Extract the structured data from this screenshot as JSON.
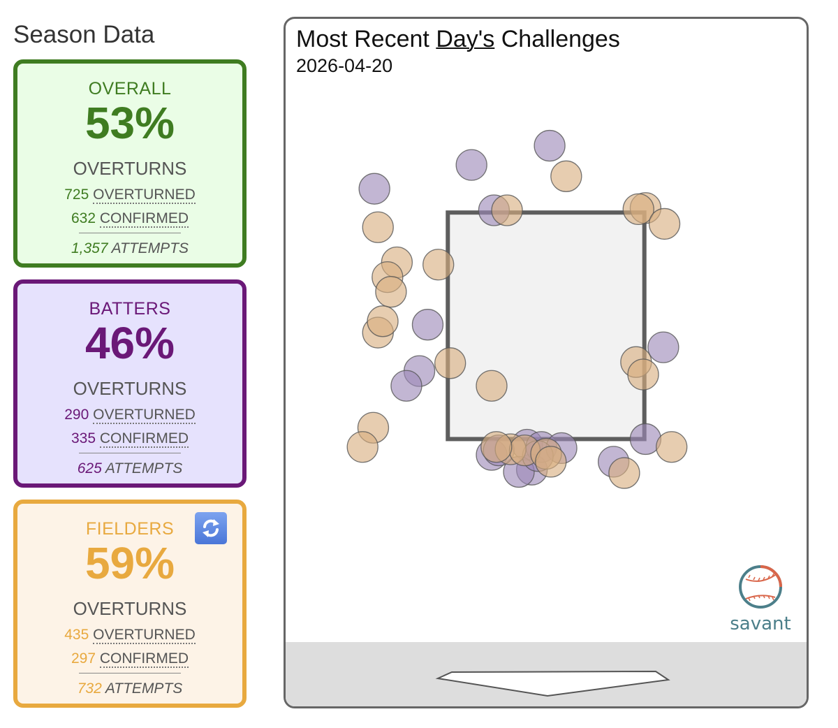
{
  "season": {
    "title": "Season Data"
  },
  "cards": {
    "overall": {
      "label": "OVERALL",
      "percent": "53%",
      "overturns_label": "OVERTURNS",
      "overturned_count": "725",
      "overturned_label": "OVERTURNED",
      "confirmed_count": "632",
      "confirmed_label": "CONFIRMED",
      "attempts_count": "1,357",
      "attempts_label": "ATTEMPTS"
    },
    "batters": {
      "label": "BATTERS",
      "percent": "46%",
      "overturns_label": "OVERTURNS",
      "overturned_count": "290",
      "overturned_label": "OVERTURNED",
      "confirmed_count": "335",
      "confirmed_label": "CONFIRMED",
      "attempts_count": "625",
      "attempts_label": "ATTEMPTS"
    },
    "fielders": {
      "label": "FIELDERS",
      "percent": "59%",
      "overturns_label": "OVERTURNS",
      "overturned_count": "435",
      "overturned_label": "OVERTURNED",
      "confirmed_count": "297",
      "confirmed_label": "CONFIRMED",
      "attempts_count": "732",
      "attempts_label": "ATTEMPTS",
      "swap_icon": "swap-arrows-icon"
    }
  },
  "chart": {
    "title_prefix": "Most Recent ",
    "title_link": "Day's",
    "title_suffix": " Challenges",
    "date": "2026-04-20",
    "logo_text": "savant",
    "colors": {
      "batter": "#9d89b8",
      "fielder": "#d9ae80",
      "zone_fill": "#f2f2f2",
      "zone_stroke": "#5e5e5e"
    }
  },
  "chart_data": {
    "type": "scatter",
    "title": "Most Recent Day's Challenges",
    "xlabel": "",
    "ylabel": "",
    "strike_zone": {
      "x": [
        -0.83,
        0.83
      ],
      "z": [
        1.5,
        3.5
      ]
    },
    "xlim": [
      -2.2,
      2.2
    ],
    "ylim": [
      -0.86,
      5.21
    ],
    "series": [
      {
        "name": "Batters",
        "color": "#9d89b8",
        "points": [
          [
            0.03,
            4.09
          ],
          [
            -0.63,
            3.92
          ],
          [
            -0.44,
            3.52
          ],
          [
            -1.45,
            3.71
          ],
          [
            -1.0,
            2.51
          ],
          [
            -1.07,
            2.1
          ],
          [
            -1.18,
            1.97
          ],
          [
            0.99,
            2.31
          ],
          [
            -0.12,
            1.23
          ],
          [
            -0.46,
            1.36
          ],
          [
            -0.16,
            1.45
          ],
          [
            -0.04,
            1.43
          ],
          [
            -0.23,
            1.21
          ],
          [
            0.84,
            1.5
          ],
          [
            0.57,
            1.3
          ],
          [
            -0.4,
            1.4
          ],
          [
            0.13,
            1.42
          ],
          [
            -0.07,
            1.35
          ]
        ]
      },
      {
        "name": "Fielders",
        "color": "#d9ae80",
        "points": [
          [
            0.17,
            3.82
          ],
          [
            -0.33,
            3.52
          ],
          [
            0.84,
            3.54
          ],
          [
            0.78,
            3.53
          ],
          [
            1.0,
            3.4
          ],
          [
            -1.42,
            3.37
          ],
          [
            -1.26,
            3.06
          ],
          [
            -1.34,
            2.93
          ],
          [
            -0.91,
            3.04
          ],
          [
            -1.31,
            2.8
          ],
          [
            -1.42,
            2.44
          ],
          [
            -1.38,
            2.54
          ],
          [
            -0.81,
            2.17
          ],
          [
            -0.46,
            1.97
          ],
          [
            0.76,
            2.18
          ],
          [
            0.82,
            2.07
          ],
          [
            -1.46,
            1.6
          ],
          [
            -1.55,
            1.43
          ],
          [
            -0.3,
            1.41
          ],
          [
            -0.18,
            1.4
          ],
          [
            0.0,
            1.37
          ],
          [
            0.04,
            1.3
          ],
          [
            1.06,
            1.43
          ],
          [
            0.66,
            1.2
          ],
          [
            -0.42,
            1.43
          ]
        ]
      }
    ]
  }
}
